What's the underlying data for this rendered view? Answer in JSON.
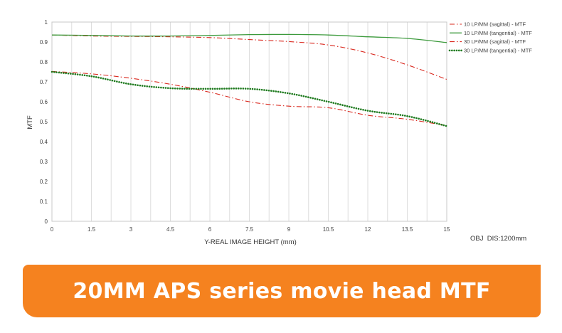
{
  "chart_data": {
    "type": "line",
    "title": "",
    "xlabel": "Y-REAL IMAGE HEIGHT (mm)",
    "ylabel": "MTF",
    "xlim": [
      0,
      15
    ],
    "ylim": [
      0,
      1
    ],
    "x_ticks": [
      0,
      1.5,
      3,
      4.5,
      6,
      7.5,
      9,
      10.5,
      12,
      13.5,
      15
    ],
    "y_ticks": [
      0,
      0.1,
      0.2,
      0.3,
      0.4,
      0.5,
      0.6,
      0.7,
      0.8,
      0.9,
      1
    ],
    "grid": "vertical",
    "legend_position": "top-right",
    "series": [
      {
        "name": "10 LP/MM (sagittal) - MTF",
        "color": "#d9281e",
        "style": "dash-dot",
        "x": [
          0,
          1.5,
          3,
          4.5,
          6,
          7.5,
          9,
          10.5,
          12,
          13.5,
          15
        ],
        "y": [
          0.935,
          0.93,
          0.928,
          0.926,
          0.922,
          0.912,
          0.902,
          0.885,
          0.845,
          0.785,
          0.712
        ]
      },
      {
        "name": "10 LP/MM (tangential) - MTF",
        "color": "#3c9a3c",
        "style": "solid",
        "x": [
          0,
          1.5,
          3,
          4.5,
          6,
          7.5,
          9,
          10.5,
          12,
          13.5,
          15
        ],
        "y": [
          0.935,
          0.933,
          0.93,
          0.93,
          0.933,
          0.937,
          0.938,
          0.935,
          0.926,
          0.918,
          0.897
        ]
      },
      {
        "name": "30 LP/MM (sagittal) - MTF",
        "color": "#d9281e",
        "style": "dash-dot",
        "x": [
          0,
          1.5,
          3,
          4.5,
          6,
          7.5,
          9,
          10.5,
          12,
          13.5,
          15
        ],
        "y": [
          0.752,
          0.74,
          0.718,
          0.688,
          0.648,
          0.6,
          0.578,
          0.57,
          0.532,
          0.512,
          0.48
        ]
      },
      {
        "name": "30 LP/MM (tangential) - MTF",
        "color": "#1e7a1e",
        "style": "dotted",
        "x": [
          0,
          1.5,
          3,
          4.5,
          6,
          7.5,
          9,
          10.5,
          12,
          13.5,
          15
        ],
        "y": [
          0.75,
          0.728,
          0.688,
          0.668,
          0.665,
          0.665,
          0.642,
          0.6,
          0.555,
          0.528,
          0.478
        ]
      }
    ]
  },
  "note": "OBJ  DIS:1200mm",
  "banner": {
    "text": "20MM APS series movie head MTF",
    "color": "#f5821f"
  }
}
